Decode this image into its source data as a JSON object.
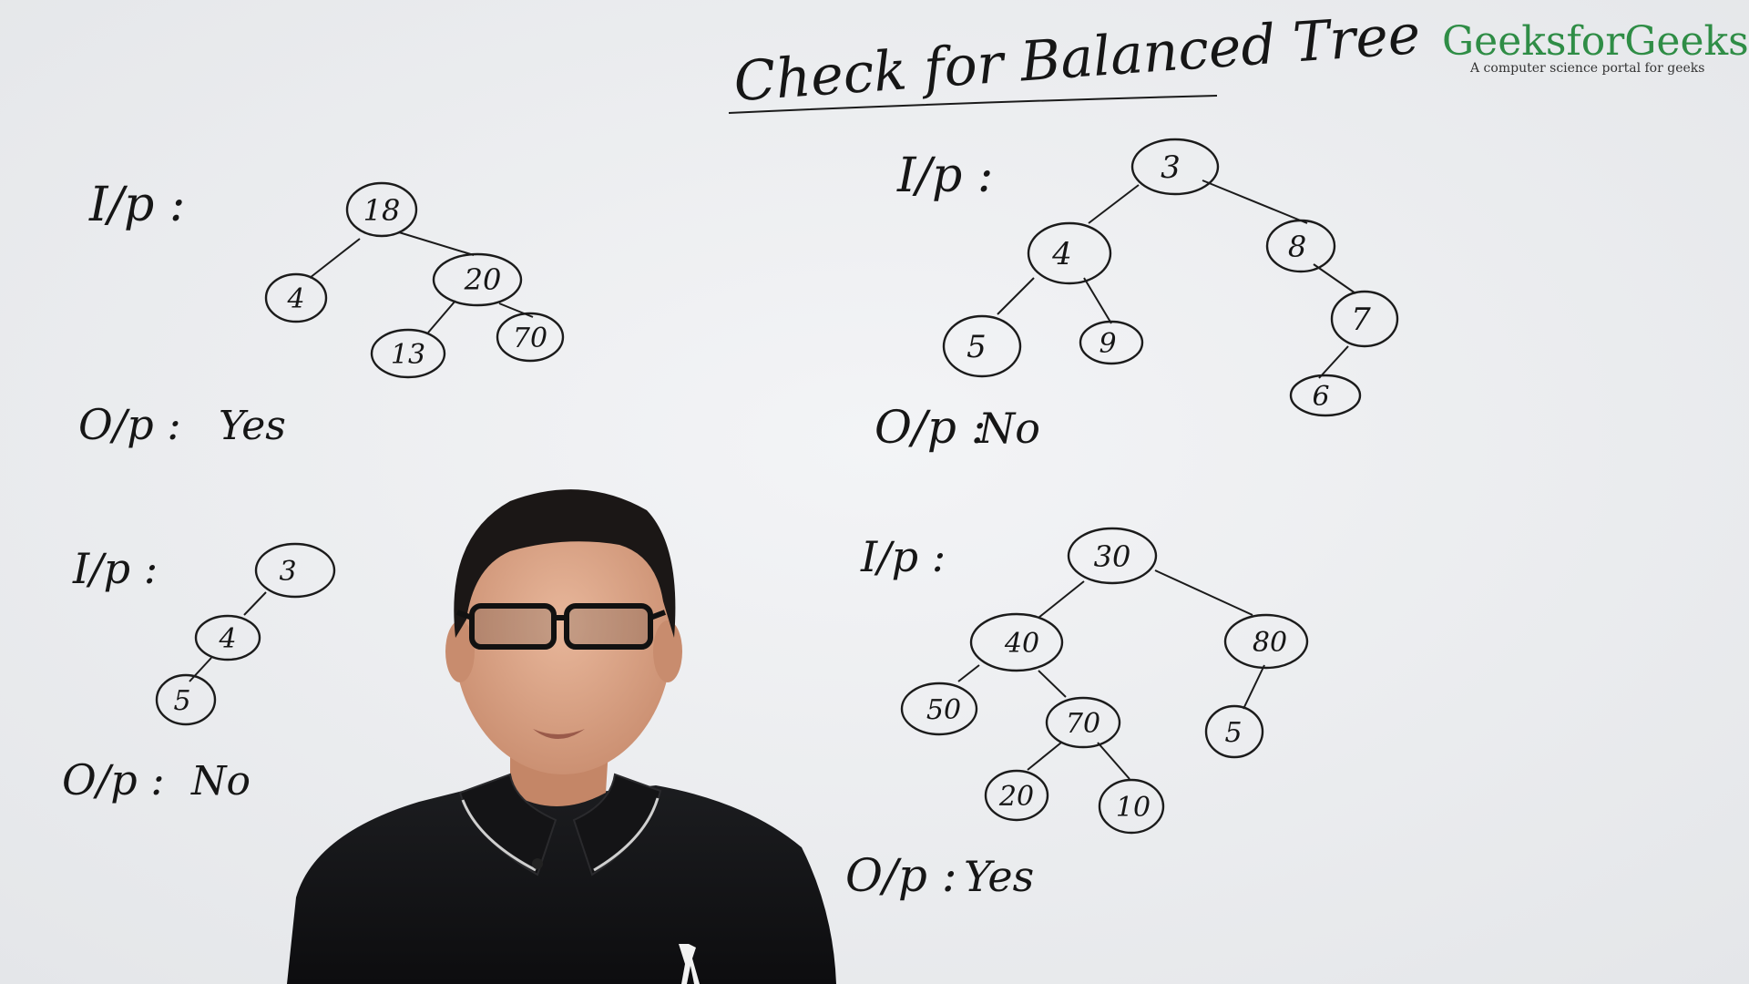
{
  "title": "Check for Balanced Tree",
  "logo": {
    "name": "GeeksforGeeks",
    "tagline": "A computer science portal for geeks",
    "color": "#2f8d46"
  },
  "examples": [
    {
      "input_label": "I/p :",
      "output_label": "O/p :",
      "output": "Yes",
      "nodes": [
        "18",
        "4",
        "20",
        "13",
        "70"
      ]
    },
    {
      "input_label": "I/p :",
      "output_label": "O/p :",
      "output": "No",
      "nodes": [
        "3",
        "4",
        "5"
      ]
    },
    {
      "input_label": "I/p :",
      "output_label": "O/p :",
      "output": "No",
      "nodes": [
        "3",
        "4",
        "8",
        "5",
        "9",
        "7",
        "6"
      ]
    },
    {
      "input_label": "I/p :",
      "output_label": "O/p :",
      "output": "Yes",
      "nodes": [
        "30",
        "40",
        "80",
        "50",
        "70",
        "5",
        "20",
        "10"
      ]
    }
  ]
}
